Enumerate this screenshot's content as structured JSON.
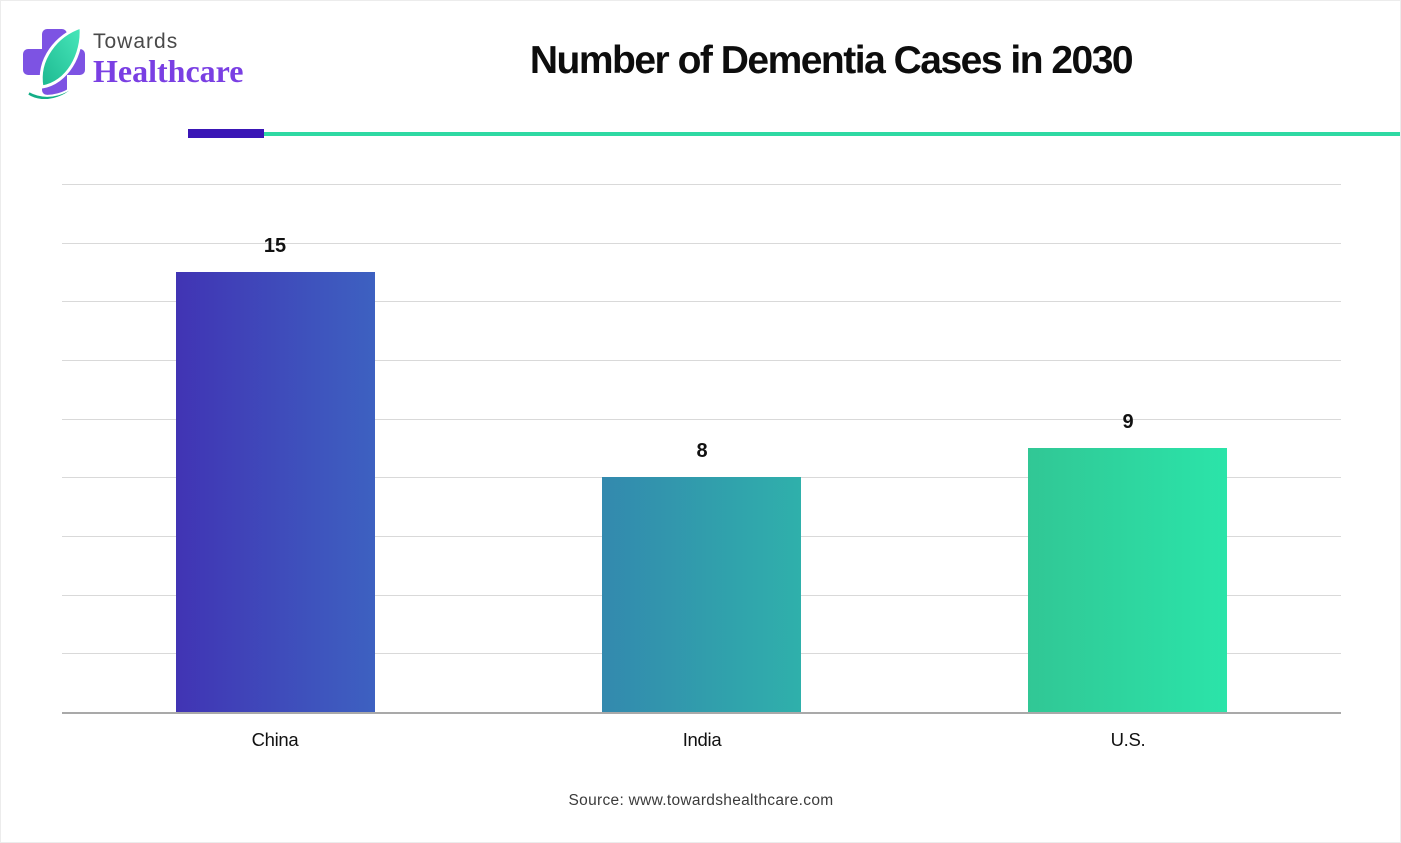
{
  "logo": {
    "towards": "Towards",
    "healthcare": "Healthcare",
    "cross_color": "#7d53e3",
    "healthcare_color": "#7a3fe3",
    "towards_color": "#4a4a4a",
    "leaf_gradient": [
      "#49e8bb",
      "#1cb890"
    ]
  },
  "header": {
    "title": "Number of Dementia Cases in 2030",
    "divider_purple_color": "#3a16b6",
    "divider_teal_color": "#2ed9a3"
  },
  "chart_data": {
    "type": "bar",
    "title": "Number of Dementia Cases in 2030",
    "categories": [
      "China",
      "India",
      "U.S."
    ],
    "values": [
      15,
      8,
      9
    ],
    "value_labels": [
      "15",
      "8",
      "9"
    ],
    "xlabel": "",
    "ylabel": "",
    "ylim": [
      0,
      18
    ],
    "gridline_interval": 2,
    "grid": true,
    "legend": "none",
    "bar_gradients": [
      [
        "#4134b4",
        "#3d61c1"
      ],
      [
        "#3389ae",
        "#2fb0ab"
      ],
      [
        "#31c795",
        "#2be4a9"
      ]
    ],
    "gridline_color": "#d9d9d9",
    "baseline_color": "#a9a9a9"
  },
  "footer": {
    "source": "Source: www.towardshealthcare.com"
  }
}
